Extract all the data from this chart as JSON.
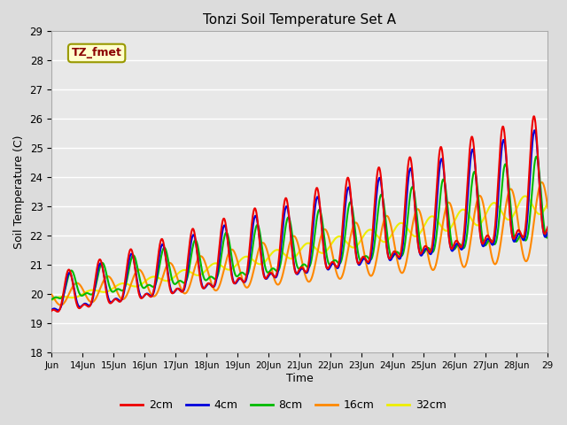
{
  "title": "Tonzi Soil Temperature Set A",
  "xlabel": "Time",
  "ylabel": "Soil Temperature (C)",
  "ylim": [
    18.0,
    29.0
  ],
  "yticks": [
    18.0,
    19.0,
    20.0,
    21.0,
    22.0,
    23.0,
    24.0,
    25.0,
    26.0,
    27.0,
    28.0,
    29.0
  ],
  "x_labels": [
    "Jun",
    "14Jun",
    "15Jun",
    "16Jun",
    "17Jun",
    "18Jun",
    "19Jun",
    "20Jun",
    "21Jun",
    "22Jun",
    "23Jun",
    "24Jun",
    "25Jun",
    "26Jun",
    "27Jun",
    "28Jun",
    "29"
  ],
  "series_colors": {
    "2cm": "#ee0000",
    "4cm": "#0000dd",
    "8cm": "#00bb00",
    "16cm": "#ff8800",
    "32cm": "#eeee00"
  },
  "series_labels": [
    "2cm",
    "4cm",
    "8cm",
    "16cm",
    "32cm"
  ],
  "legend_label": "TZ_fmet",
  "fig_bg_color": "#dcdcdc",
  "plot_bg_color": "#e8e8e8"
}
